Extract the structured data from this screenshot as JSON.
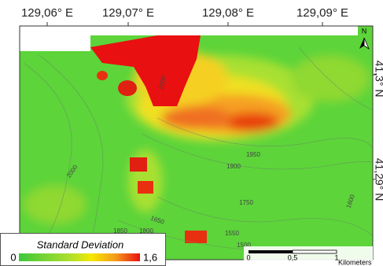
{
  "map": {
    "lon_labels": [
      "129,06° E",
      "129,07° E",
      "129,08° E",
      "129,09° E"
    ],
    "lat_labels": [
      "41,3° N",
      "41,29° N"
    ],
    "contour_labels": [
      "2000",
      "1950",
      "1900",
      "1750",
      "1650",
      "1600",
      "1550",
      "1500",
      "1850",
      "1800",
      "2000"
    ],
    "north": "N",
    "legend": {
      "title": "Standard Deviation",
      "min": "0",
      "max": "1,6"
    },
    "scale": {
      "ticks": [
        "0",
        "0,5",
        "1"
      ],
      "unit": "Kilometers"
    }
  }
}
